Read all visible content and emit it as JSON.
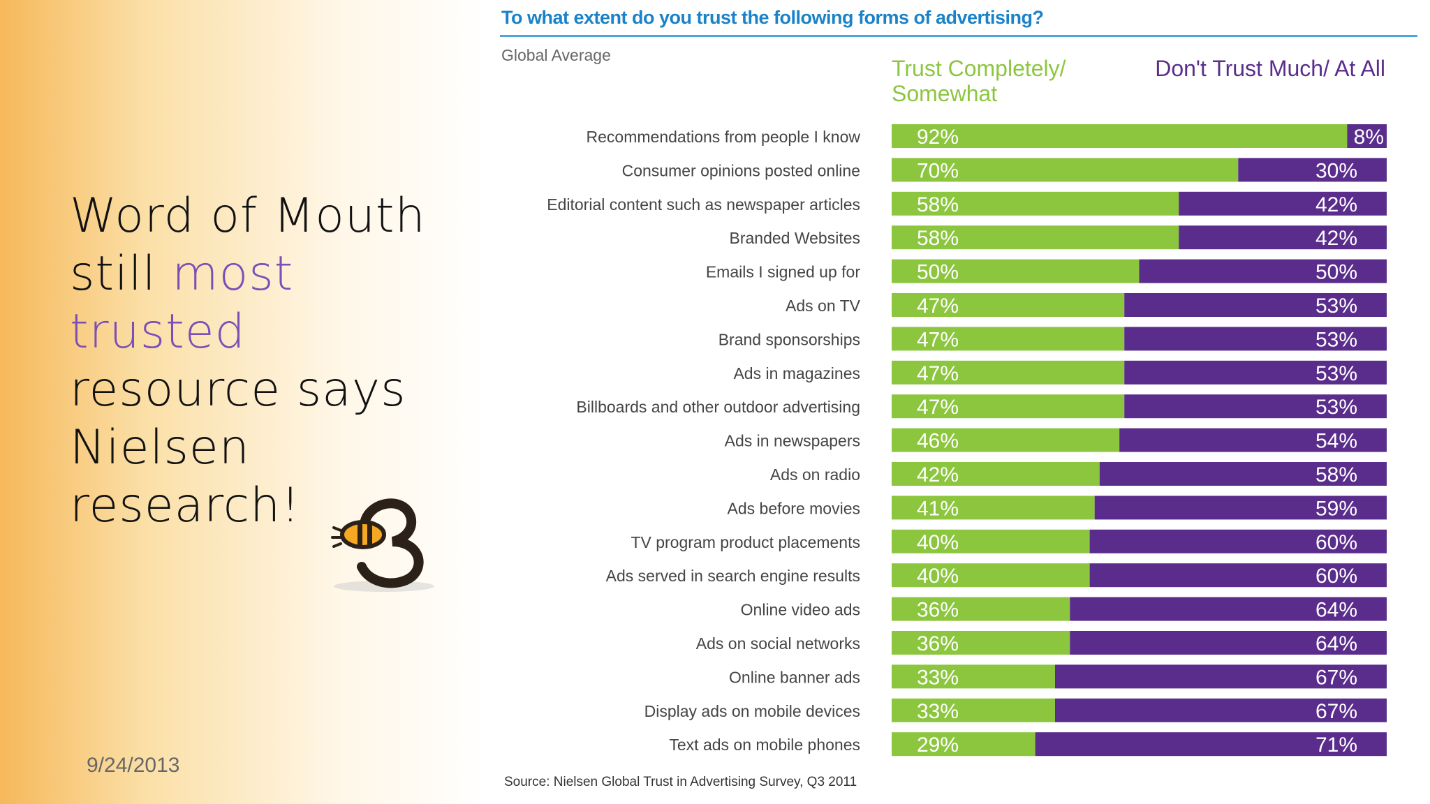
{
  "slide": {
    "line1": "Word of Mouth",
    "line2_prefix": "still ",
    "line2_highlight": "most trusted",
    "line3": "resource says",
    "line4": "Nielsen",
    "line5": "research!",
    "date": "9/24/2013"
  },
  "colors": {
    "trust": "#8cc63f",
    "distrust": "#5a2d8c",
    "title": "#1a82c8",
    "highlight": "#7a4fb8"
  },
  "chart_data": {
    "type": "bar",
    "orientation": "horizontal-stacked-100",
    "title": "To what extent do you trust the following forms of advertising?",
    "subtitle": "Global Average",
    "legend_trust": "Trust Completely/ Somewhat",
    "legend_distrust": "Don't Trust Much/ At All",
    "source": "Source: Nielsen Global Trust in Advertising Survey, Q3 2011",
    "categories": [
      "Recommendations from people I know",
      "Consumer opinions posted online",
      "Editorial content such as newspaper articles",
      "Branded Websites",
      "Emails I signed up for",
      "Ads on TV",
      "Brand sponsorships",
      "Ads in magazines",
      "Billboards and other outdoor advertising",
      "Ads in newspapers",
      "Ads on radio",
      "Ads before movies",
      "TV program product placements",
      "Ads served in search engine results",
      "Online video ads",
      "Ads on social networks",
      "Online banner ads",
      "Display ads on mobile devices",
      "Text ads on mobile phones"
    ],
    "series": [
      {
        "name": "Trust Completely/ Somewhat",
        "values": [
          92,
          70,
          58,
          58,
          50,
          47,
          47,
          47,
          47,
          46,
          42,
          41,
          40,
          40,
          36,
          36,
          33,
          33,
          29
        ]
      },
      {
        "name": "Don't Trust Much/ At All",
        "values": [
          8,
          30,
          42,
          42,
          50,
          53,
          53,
          53,
          53,
          54,
          58,
          59,
          60,
          60,
          64,
          64,
          67,
          67,
          71
        ]
      }
    ],
    "unit": "%",
    "xlim": [
      0,
      100
    ]
  }
}
